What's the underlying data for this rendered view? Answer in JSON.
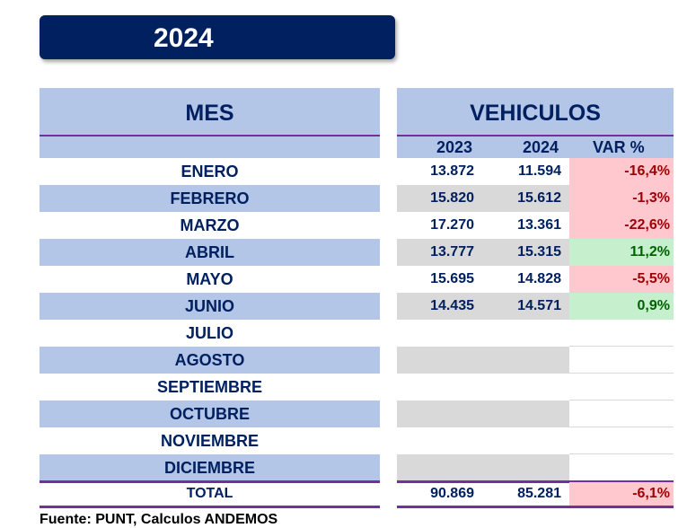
{
  "title": "2024",
  "headers": {
    "mes": "MES",
    "vehiculos": "VEHICULOS",
    "y2023": "2023",
    "y2024": "2024",
    "var": "VAR %"
  },
  "rows": [
    {
      "mes": "ENERO",
      "v2023": "13.872",
      "v2024": "11.594",
      "var": "-16,4%",
      "trend": "neg"
    },
    {
      "mes": "FEBRERO",
      "v2023": "15.820",
      "v2024": "15.612",
      "var": "-1,3%",
      "trend": "neg"
    },
    {
      "mes": "MARZO",
      "v2023": "17.270",
      "v2024": "13.361",
      "var": "-22,6%",
      "trend": "neg"
    },
    {
      "mes": "ABRIL",
      "v2023": "13.777",
      "v2024": "15.315",
      "var": "11,2%",
      "trend": "pos"
    },
    {
      "mes": "MAYO",
      "v2023": "15.695",
      "v2024": "14.828",
      "var": "-5,5%",
      "trend": "neg"
    },
    {
      "mes": "JUNIO",
      "v2023": "14.435",
      "v2024": "14.571",
      "var": "0,9%",
      "trend": "pos"
    },
    {
      "mes": "JULIO",
      "v2023": "",
      "v2024": "",
      "var": "",
      "trend": ""
    },
    {
      "mes": "AGOSTO",
      "v2023": "",
      "v2024": "",
      "var": "",
      "trend": ""
    },
    {
      "mes": "SEPTIEMBRE",
      "v2023": "",
      "v2024": "",
      "var": "",
      "trend": ""
    },
    {
      "mes": "OCTUBRE",
      "v2023": "",
      "v2024": "",
      "var": "",
      "trend": ""
    },
    {
      "mes": "NOVIEMBRE",
      "v2023": "",
      "v2024": "",
      "var": "",
      "trend": ""
    },
    {
      "mes": "DICIEMBRE",
      "v2023": "",
      "v2024": "",
      "var": "",
      "trend": ""
    }
  ],
  "total": {
    "label": "TOTAL",
    "v2023": "90.869",
    "v2024": "85.281",
    "var": "-6,1%"
  },
  "source": "Fuente: PUNT, Calculos ANDEMOS"
}
